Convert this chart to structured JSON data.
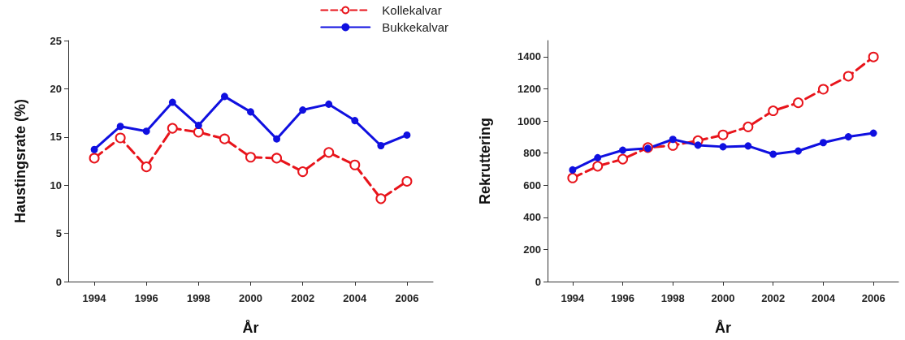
{
  "chart_data": [
    {
      "type": "line",
      "xlabel": "År",
      "ylabel": "Haustingsrate (%)",
      "x": [
        1994,
        1995,
        1996,
        1997,
        1998,
        1999,
        2000,
        2001,
        2002,
        2003,
        2004,
        2005,
        2006
      ],
      "xlim": [
        1993,
        2007
      ],
      "xticks": [
        1994,
        1996,
        1998,
        2000,
        2002,
        2004,
        2006
      ],
      "ylim": [
        0,
        25
      ],
      "yticks": [
        0,
        5,
        10,
        15,
        20,
        25
      ],
      "grid": false,
      "legend": "top right",
      "marker": "circle",
      "series": [
        {
          "name": "Kollekalvar",
          "color": "#e8141b",
          "line_style": "dashed",
          "values": [
            12.8,
            14.9,
            11.9,
            15.9,
            15.5,
            14.8,
            12.9,
            12.8,
            11.4,
            13.4,
            12.1,
            8.6,
            10.4
          ]
        },
        {
          "name": "Bukkekalvar",
          "color": "#1010e0",
          "line_style": "solid",
          "values": [
            13.7,
            16.1,
            15.6,
            18.6,
            16.2,
            19.2,
            17.6,
            14.8,
            17.8,
            18.4,
            16.7,
            14.1,
            15.2
          ]
        }
      ]
    },
    {
      "type": "line",
      "xlabel": "År",
      "ylabel": "Rekruttering",
      "x": [
        1994,
        1995,
        1996,
        1997,
        1998,
        1999,
        2000,
        2001,
        2002,
        2003,
        2004,
        2005,
        2006
      ],
      "xlim": [
        1993,
        2007
      ],
      "xticks": [
        1994,
        1996,
        1998,
        2000,
        2002,
        2004,
        2006
      ],
      "ylim": [
        0,
        1500
      ],
      "yticks": [
        0,
        200,
        400,
        600,
        800,
        1000,
        1200,
        1400
      ],
      "grid": false,
      "legend": false,
      "marker": "circle",
      "series": [
        {
          "color": "#e8141b",
          "line_style": "dashed",
          "values": [
            645,
            718,
            762,
            834,
            847,
            877,
            913,
            963,
            1063,
            1113,
            1197,
            1278,
            1398
          ]
        },
        {
          "color": "#1010e0",
          "line_style": "solid",
          "values": [
            695,
            771,
            818,
            829,
            885,
            849,
            839,
            844,
            793,
            813,
            865,
            901,
            924
          ]
        }
      ]
    }
  ]
}
